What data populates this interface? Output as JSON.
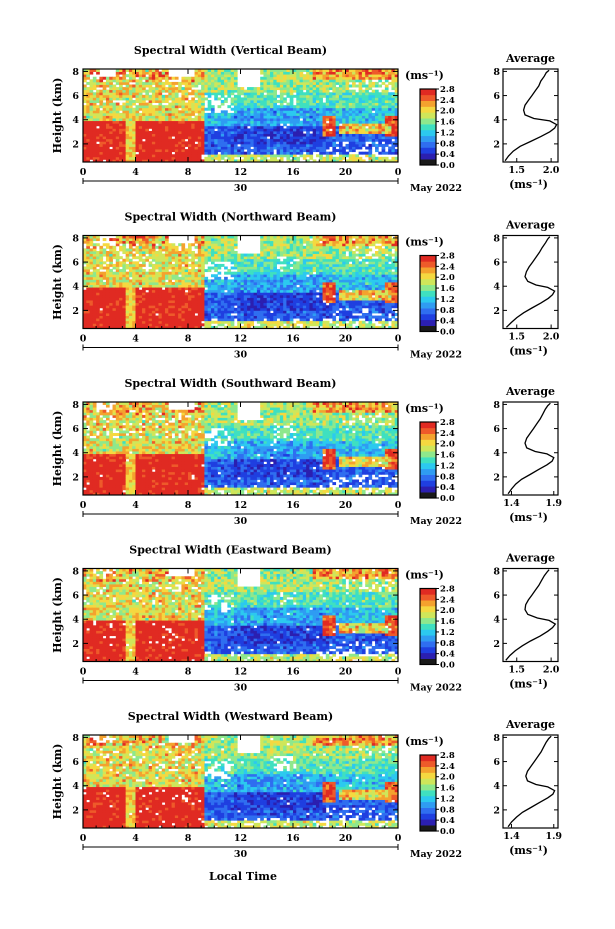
{
  "figure": {
    "xlabel": "Local Time",
    "date_label": "May 2022",
    "day_label": "30",
    "ylabel": "Height (km)",
    "unit_label": "(ms⁻¹)",
    "x_ticks": [
      "0",
      "4",
      "8",
      "12",
      "16",
      "20",
      "0"
    ],
    "y_ticks": [
      "2",
      "4",
      "6",
      "8"
    ],
    "colorbar_ticks": [
      "0.0",
      "0.4",
      "0.8",
      "1.2",
      "1.6",
      "2.0",
      "2.4",
      "2.8"
    ],
    "avg_title": "Average",
    "avg_xlabel": "(ms⁻¹)",
    "avg_y_ticks": [
      "2",
      "4",
      "6",
      "8"
    ]
  },
  "colors": {
    "colormap": [
      "#1a1a1a",
      "#2b1fb0",
      "#1f3fe0",
      "#2f6ef0",
      "#2f9cf2",
      "#2cc9ef",
      "#3fe0c0",
      "#8ee88c",
      "#cfe65a",
      "#f5d840",
      "#f4a22e",
      "#ee5a2a",
      "#e02a22"
    ],
    "missing": "#ffffff"
  },
  "chart_data": [
    {
      "type": "heatmap",
      "title": "Spectral Width (Vertical Beam)",
      "xlim": [
        0,
        24
      ],
      "ylim": [
        0.5,
        8.2
      ],
      "zlim": [
        0.0,
        2.8
      ],
      "avg_xticks": [
        "1.5",
        "2.0"
      ],
      "avg_xlim": [
        1.3,
        2.1
      ],
      "avg_profile": [
        [
          1.33,
          0.6
        ],
        [
          1.38,
          1.0
        ],
        [
          1.45,
          1.4
        ],
        [
          1.55,
          1.8
        ],
        [
          1.7,
          2.2
        ],
        [
          1.85,
          2.6
        ],
        [
          1.98,
          3.0
        ],
        [
          2.05,
          3.3
        ],
        [
          2.08,
          3.6
        ],
        [
          1.98,
          3.9
        ],
        [
          1.75,
          4.1
        ],
        [
          1.62,
          4.4
        ],
        [
          1.6,
          4.8
        ],
        [
          1.62,
          5.2
        ],
        [
          1.67,
          5.6
        ],
        [
          1.72,
          6.0
        ],
        [
          1.77,
          6.4
        ],
        [
          1.82,
          6.8
        ],
        [
          1.85,
          7.2
        ],
        [
          1.9,
          7.6
        ],
        [
          1.93,
          7.9
        ],
        [
          1.97,
          8.1
        ]
      ]
    },
    {
      "type": "heatmap",
      "title": "Spectral Width (Northward Beam)",
      "xlim": [
        0,
        24
      ],
      "ylim": [
        0.5,
        8.2
      ],
      "zlim": [
        0.0,
        2.8
      ],
      "avg_xticks": [
        "1.5",
        "2.0"
      ],
      "avg_xlim": [
        1.3,
        2.1
      ],
      "avg_profile": [
        [
          1.35,
          0.6
        ],
        [
          1.42,
          1.0
        ],
        [
          1.5,
          1.4
        ],
        [
          1.6,
          1.8
        ],
        [
          1.72,
          2.2
        ],
        [
          1.85,
          2.6
        ],
        [
          1.96,
          3.0
        ],
        [
          2.02,
          3.3
        ],
        [
          2.05,
          3.6
        ],
        [
          1.95,
          3.9
        ],
        [
          1.78,
          4.1
        ],
        [
          1.66,
          4.4
        ],
        [
          1.62,
          4.8
        ],
        [
          1.64,
          5.2
        ],
        [
          1.68,
          5.6
        ],
        [
          1.73,
          6.0
        ],
        [
          1.78,
          6.4
        ],
        [
          1.83,
          6.8
        ],
        [
          1.87,
          7.2
        ],
        [
          1.92,
          7.6
        ],
        [
          1.95,
          7.9
        ],
        [
          1.98,
          8.1
        ]
      ]
    },
    {
      "type": "heatmap",
      "title": "Spectral Width (Southward Beam)",
      "xlim": [
        0,
        24
      ],
      "ylim": [
        0.5,
        8.2
      ],
      "zlim": [
        0.0,
        2.8
      ],
      "avg_xticks": [
        "1.4",
        "1.9"
      ],
      "avg_xlim": [
        1.3,
        1.95
      ],
      "avg_profile": [
        [
          1.36,
          0.6
        ],
        [
          1.4,
          1.0
        ],
        [
          1.45,
          1.4
        ],
        [
          1.52,
          1.8
        ],
        [
          1.62,
          2.2
        ],
        [
          1.72,
          2.6
        ],
        [
          1.82,
          3.0
        ],
        [
          1.88,
          3.3
        ],
        [
          1.9,
          3.6
        ],
        [
          1.82,
          3.9
        ],
        [
          1.68,
          4.1
        ],
        [
          1.58,
          4.4
        ],
        [
          1.56,
          4.8
        ],
        [
          1.58,
          5.2
        ],
        [
          1.62,
          5.6
        ],
        [
          1.66,
          6.0
        ],
        [
          1.7,
          6.4
        ],
        [
          1.74,
          6.8
        ],
        [
          1.77,
          7.2
        ],
        [
          1.8,
          7.6
        ],
        [
          1.83,
          7.9
        ],
        [
          1.86,
          8.1
        ]
      ]
    },
    {
      "type": "heatmap",
      "title": "Spectral Width (Eastward Beam)",
      "xlim": [
        0,
        24
      ],
      "ylim": [
        0.5,
        8.2
      ],
      "zlim": [
        0.0,
        2.8
      ],
      "avg_xticks": [
        "1.5",
        "2.0"
      ],
      "avg_xlim": [
        1.3,
        2.1
      ],
      "avg_profile": [
        [
          1.34,
          0.6
        ],
        [
          1.4,
          1.0
        ],
        [
          1.48,
          1.4
        ],
        [
          1.58,
          1.8
        ],
        [
          1.7,
          2.2
        ],
        [
          1.84,
          2.6
        ],
        [
          1.95,
          3.0
        ],
        [
          2.02,
          3.3
        ],
        [
          2.06,
          3.6
        ],
        [
          1.97,
          3.9
        ],
        [
          1.8,
          4.1
        ],
        [
          1.66,
          4.4
        ],
        [
          1.62,
          4.8
        ],
        [
          1.63,
          5.2
        ],
        [
          1.67,
          5.6
        ],
        [
          1.72,
          6.0
        ],
        [
          1.77,
          6.4
        ],
        [
          1.82,
          6.8
        ],
        [
          1.86,
          7.2
        ],
        [
          1.9,
          7.6
        ],
        [
          1.94,
          7.9
        ],
        [
          1.97,
          8.1
        ]
      ]
    },
    {
      "type": "heatmap",
      "title": "Spectral Width (Westward Beam)",
      "xlim": [
        0,
        24
      ],
      "ylim": [
        0.5,
        8.2
      ],
      "zlim": [
        0.0,
        2.8
      ],
      "avg_xticks": [
        "1.4",
        "1.9"
      ],
      "avg_xlim": [
        1.3,
        1.95
      ],
      "avg_profile": [
        [
          1.36,
          0.6
        ],
        [
          1.4,
          1.0
        ],
        [
          1.46,
          1.4
        ],
        [
          1.53,
          1.8
        ],
        [
          1.63,
          2.2
        ],
        [
          1.73,
          2.6
        ],
        [
          1.83,
          3.0
        ],
        [
          1.89,
          3.3
        ],
        [
          1.91,
          3.6
        ],
        [
          1.83,
          3.9
        ],
        [
          1.69,
          4.1
        ],
        [
          1.59,
          4.4
        ],
        [
          1.57,
          4.8
        ],
        [
          1.59,
          5.2
        ],
        [
          1.63,
          5.6
        ],
        [
          1.67,
          6.0
        ],
        [
          1.71,
          6.4
        ],
        [
          1.75,
          6.8
        ],
        [
          1.78,
          7.2
        ],
        [
          1.81,
          7.6
        ],
        [
          1.84,
          7.9
        ],
        [
          1.87,
          8.1
        ]
      ]
    }
  ]
}
